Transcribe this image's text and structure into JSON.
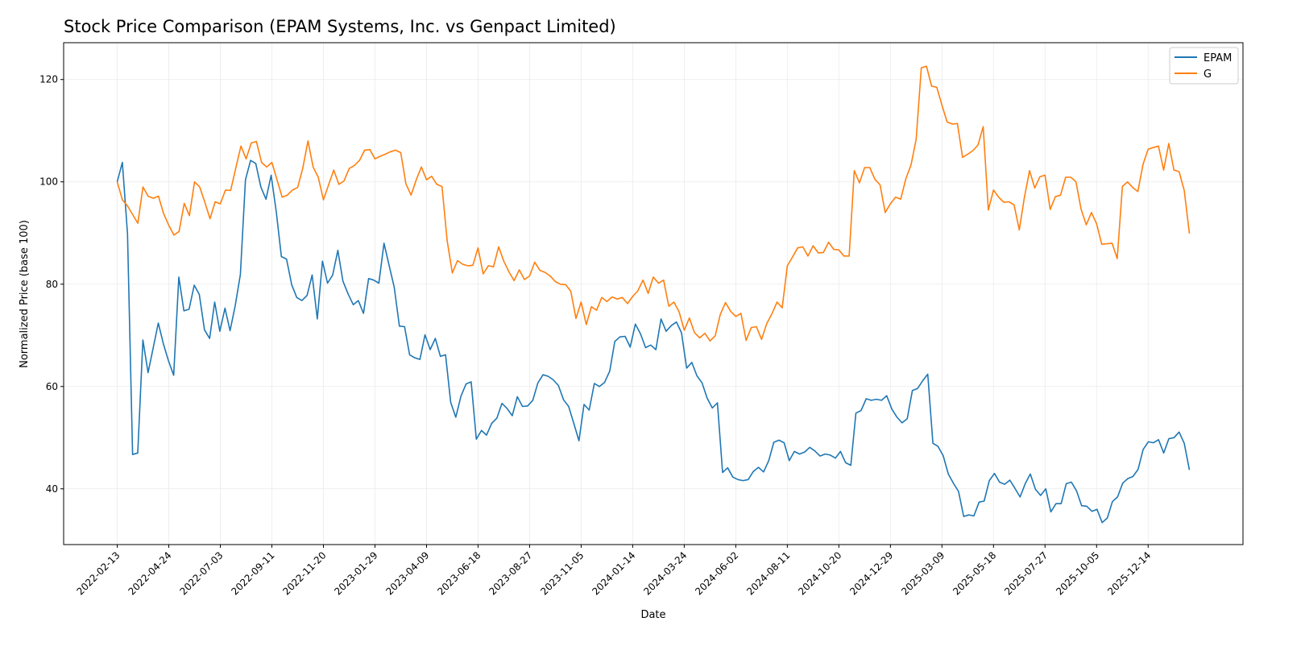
{
  "chart_data": {
    "type": "line",
    "title": "Stock Price Comparison (EPAM Systems, Inc. vs Genpact Limited)",
    "xlabel": "Date",
    "ylabel": "Normalized Price (base 100)",
    "x_range": [
      "2022-02-13",
      "2026-02-08"
    ],
    "ylim": [
      29.1,
      127.2
    ],
    "yticks": [
      40,
      60,
      80,
      100,
      120
    ],
    "xticks": [
      "2022-02-13",
      "2022-04-24",
      "2022-07-03",
      "2022-09-11",
      "2022-11-20",
      "2023-01-29",
      "2023-04-09",
      "2023-06-18",
      "2023-08-27",
      "2023-11-05",
      "2024-01-14",
      "2024-03-24",
      "2024-06-02",
      "2024-08-11",
      "2024-10-20",
      "2024-12-29",
      "2025-03-09",
      "2025-05-18",
      "2025-07-27",
      "2025-10-05",
      "2025-12-14"
    ],
    "grid": true,
    "legend_position": "top-right",
    "series": [
      {
        "name": "EPAM",
        "color": "#1f77b4",
        "values": [
          100,
          103.8,
          89.8,
          46.7,
          47,
          69.1,
          62.7,
          67.5,
          72.4,
          68.3,
          65,
          62.2,
          81.4,
          74.8,
          75.1,
          79.8,
          78,
          71.1,
          69.4,
          76.5,
          70.8,
          75.3,
          70.9,
          75.8,
          81.9,
          100.4,
          104.2,
          103.6,
          99,
          96.6,
          101.3,
          94.1,
          85.4,
          84.9,
          79.9,
          77.4,
          76.8,
          77.8,
          81.8,
          73.2,
          84.5,
          80.2,
          81.8,
          86.6,
          80.6,
          78.1,
          76,
          76.8,
          74.3,
          81.1,
          80.8,
          80.2,
          88,
          83.7,
          79.4,
          71.8,
          71.7,
          66.2,
          65.6,
          65.3,
          70.1,
          67.2,
          69.4,
          65.9,
          66.2,
          56.9,
          54,
          58.1,
          60.5,
          60.9,
          49.7,
          51.4,
          50.5,
          52.8,
          53.8,
          56.7,
          55.7,
          54.3,
          58,
          56.1,
          56.2,
          57.3,
          60.7,
          62.3,
          62,
          61.3,
          60.2,
          57.4,
          56.1,
          52.8,
          49.4,
          56.5,
          55.4,
          60.6,
          60,
          60.8,
          63,
          68.8,
          69.7,
          69.8,
          67.7,
          72.2,
          70.3,
          67.6,
          68.1,
          67.2,
          73.2,
          70.8,
          71.9,
          72.6,
          70.5,
          63.6,
          64.7,
          62.1,
          60.7,
          57.7,
          55.8,
          56.8,
          43.2,
          44.1,
          42.3,
          41.8,
          41.6,
          41.8,
          43.4,
          44.2,
          43.3,
          45.5,
          49.1,
          49.5,
          49,
          45.5,
          47.3,
          46.8,
          47.2,
          48.1,
          47.4,
          46.4,
          46.8,
          46.6,
          46,
          47.3,
          45.1,
          44.6,
          54.8,
          55.3,
          57.6,
          57.3,
          57.5,
          57.3,
          58.2,
          55.6,
          54,
          52.9,
          53.7,
          59.2,
          59.6,
          61.1,
          62.4,
          48.9,
          48.3,
          46.5,
          42.9,
          41.1,
          39.5,
          34.6,
          34.9,
          34.7,
          37.4,
          37.6,
          41.6,
          43,
          41.3,
          40.9,
          41.7,
          40.1,
          38.4,
          41,
          42.9,
          39.9,
          38.7,
          40,
          35.5,
          37.1,
          37.1,
          41,
          41.3,
          39.6,
          36.7,
          36.6,
          35.6,
          36,
          33.4,
          34.3,
          37.5,
          38.4,
          41.1,
          42,
          42.4,
          43.8,
          47.7,
          49.2,
          49,
          49.6,
          47,
          49.8,
          50,
          51.1,
          48.9,
          43.7
        ]
      },
      {
        "name": "G",
        "color": "#ff7f0e",
        "values": [
          100,
          96.5,
          95.3,
          93.6,
          91.9,
          99,
          97.2,
          96.8,
          97.2,
          93.8,
          91.5,
          89.6,
          90.3,
          95.8,
          93.4,
          100,
          99,
          96,
          92.8,
          96.1,
          95.7,
          98.4,
          98.3,
          102.7,
          107,
          104.5,
          107.6,
          107.9,
          103.8,
          102.9,
          103.8,
          100.4,
          97,
          97.4,
          98.4,
          98.9,
          102.7,
          108,
          102.9,
          100.9,
          96.5,
          99.4,
          102.3,
          99.5,
          100.2,
          102.6,
          103.2,
          104.2,
          106.2,
          106.3,
          104.5,
          105,
          105.4,
          105.9,
          106.2,
          105.7,
          99.6,
          97.4,
          100.4,
          102.9,
          100.4,
          101.1,
          99.5,
          99.1,
          88.5,
          82.2,
          84.6,
          83.9,
          83.6,
          83.7,
          87.1,
          82,
          83.6,
          83.4,
          87.3,
          84.5,
          82.4,
          80.7,
          82.8,
          80.9,
          81.6,
          84.3,
          82.7,
          82.3,
          81.6,
          80.5,
          80,
          79.9,
          78.6,
          73.3,
          76.5,
          72.1,
          75.6,
          74.9,
          77.4,
          76.6,
          77.5,
          77.1,
          77.4,
          76.2,
          77.6,
          78.7,
          80.8,
          78.2,
          81.4,
          80.2,
          80.8,
          75.7,
          76.5,
          74.6,
          71,
          73.4,
          70.5,
          69.5,
          70.4,
          68.9,
          69.9,
          74.1,
          76.4,
          74.7,
          73.7,
          74.3,
          69,
          71.5,
          71.7,
          69.2,
          72.3,
          74.2,
          76.5,
          75.4,
          83.6,
          85.3,
          87.1,
          87.3,
          85.5,
          87.5,
          86.1,
          86.2,
          88.2,
          86.8,
          86.7,
          85.5,
          85.5,
          102.2,
          99.8,
          102.8,
          102.8,
          100.5,
          99.4,
          94,
          95.7,
          97,
          96.6,
          100.6,
          103.3,
          108.3,
          122.3,
          122.6,
          118.7,
          118.5,
          115,
          111.7,
          111.3,
          111.4,
          104.8,
          105.4,
          106.1,
          107.2,
          110.8,
          94.5,
          98.4,
          97,
          96,
          96.1,
          95.5,
          90.6,
          97,
          102.2,
          98.8,
          101,
          101.3,
          94.6,
          97.1,
          97.4,
          100.9,
          100.9,
          100,
          94.6,
          91.6,
          94,
          91.8,
          87.8,
          87.9,
          88,
          85,
          99.1,
          100,
          98.9,
          98.1,
          103.4,
          106.4,
          106.7,
          107,
          102.3,
          107.5,
          102.3,
          102,
          98.3,
          89.9
        ]
      }
    ]
  }
}
